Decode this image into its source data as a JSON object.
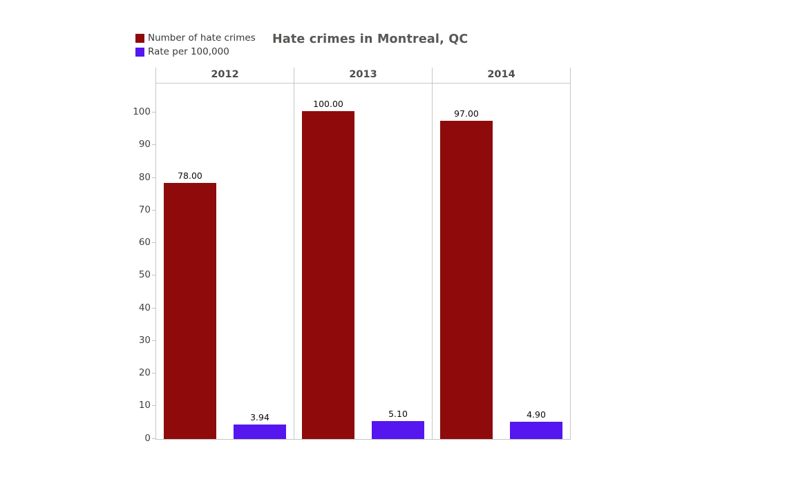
{
  "title": "Hate crimes in Montreal, QC",
  "legend": {
    "items": [
      {
        "label": "Number of hate crimes",
        "color": "#8f0b0b"
      },
      {
        "label": "Rate per 100,000",
        "color": "#5516f0"
      }
    ]
  },
  "chart_data": {
    "type": "bar",
    "layout": "faceted-grouped-bars",
    "title": "Hate crimes in Montreal, QC",
    "categories": [
      "2012",
      "2013",
      "2014"
    ],
    "series": [
      {
        "name": "Number of hate crimes",
        "slug": "hate-crimes-count",
        "color": "#8f0b0b",
        "values": [
          78.0,
          100.0,
          97.0
        ],
        "labels": [
          "78.00",
          "100.00",
          "97.00"
        ]
      },
      {
        "name": "Rate per 100,000",
        "slug": "rate-per-100000",
        "color": "#5516f0",
        "values": [
          3.94,
          5.1,
          4.9
        ],
        "labels": [
          "3.94",
          "5.10",
          "4.90"
        ]
      }
    ],
    "xlabel": "",
    "ylabel": "",
    "ylim": [
      0,
      109
    ],
    "yticks": [
      0,
      10,
      20,
      30,
      40,
      50,
      60,
      70,
      80,
      90,
      100
    ],
    "grid": false,
    "legend_position": "top-left"
  }
}
